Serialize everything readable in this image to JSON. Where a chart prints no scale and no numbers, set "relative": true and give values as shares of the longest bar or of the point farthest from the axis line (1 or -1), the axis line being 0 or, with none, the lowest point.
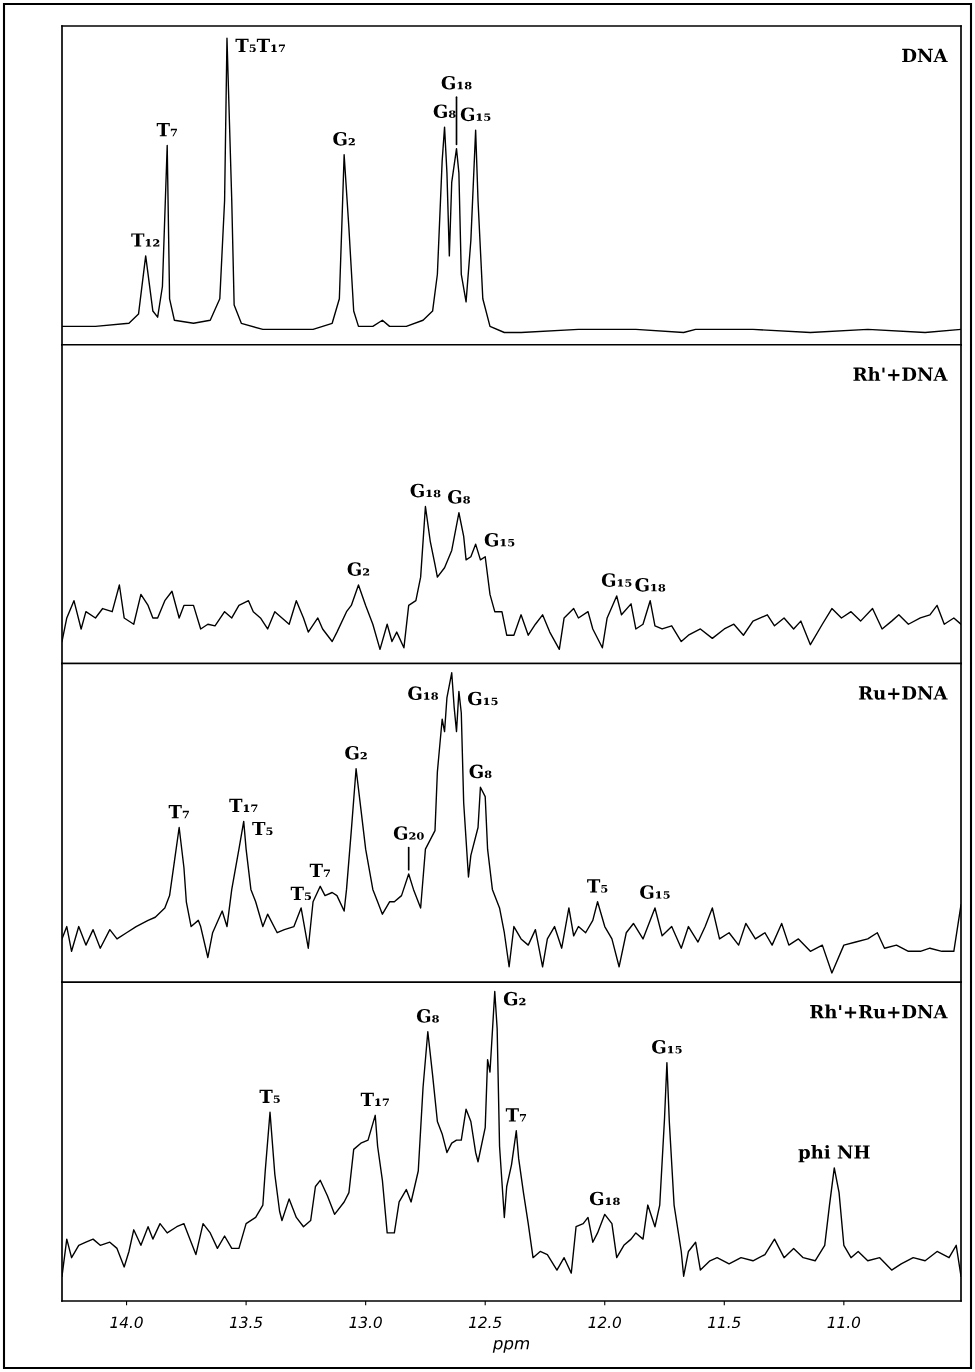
{
  "chart_data": [
    {
      "type": "line",
      "title": "DNA",
      "relative": true,
      "color": "#000000",
      "xlim": [
        14.27,
        10.51
      ],
      "tick_labels": false,
      "x": [
        14.27,
        14.13,
        13.99,
        13.95,
        13.92,
        13.89,
        13.87,
        13.85,
        13.83,
        13.82,
        13.8,
        13.72,
        13.65,
        13.61,
        13.59,
        13.58,
        13.56,
        13.55,
        13.52,
        13.43,
        13.31,
        13.22,
        13.14,
        13.11,
        13.1,
        13.09,
        13.07,
        13.05,
        13.03,
        12.97,
        12.93,
        12.9,
        12.83,
        12.76,
        12.72,
        12.7,
        12.68,
        12.67,
        12.66,
        12.65,
        12.64,
        12.62,
        12.61,
        12.6,
        12.58,
        12.56,
        12.54,
        12.53,
        12.51,
        12.48,
        12.42,
        12.35,
        12.11,
        11.87,
        11.67,
        11.62,
        11.38,
        11.14,
        10.9,
        10.66,
        10.51
      ],
      "values": [
        0.06,
        0.06,
        0.07,
        0.1,
        0.29,
        0.11,
        0.09,
        0.19,
        0.65,
        0.15,
        0.08,
        0.07,
        0.08,
        0.15,
        0.47,
        1.0,
        0.47,
        0.13,
        0.07,
        0.05,
        0.05,
        0.05,
        0.07,
        0.15,
        0.38,
        0.62,
        0.38,
        0.11,
        0.06,
        0.06,
        0.08,
        0.06,
        0.06,
        0.08,
        0.11,
        0.23,
        0.6,
        0.71,
        0.56,
        0.29,
        0.53,
        0.64,
        0.56,
        0.23,
        0.14,
        0.34,
        0.7,
        0.47,
        0.15,
        0.06,
        0.04,
        0.04,
        0.05,
        0.05,
        0.04,
        0.05,
        0.05,
        0.04,
        0.05,
        0.04,
        0.05
      ],
      "annotations": [
        {
          "text": "T₁₂",
          "x": 13.92,
          "y": 0.29
        },
        {
          "text": "T₇",
          "x": 13.83,
          "y": 0.65
        },
        {
          "text": "T₅T₁₇",
          "x": 13.58,
          "y": 1.0
        },
        {
          "text": "G₂",
          "x": 13.09,
          "y": 0.62
        },
        {
          "text": "G₁₅",
          "x": 12.54,
          "y": 0.7
        },
        {
          "text": "G₈",
          "x": 12.67,
          "y": 0.71
        },
        {
          "text": "G₁₈",
          "x": 12.62,
          "y": 0.64
        }
      ]
    },
    {
      "type": "line",
      "title": "Rh'+DNA",
      "relative": true,
      "color": "#000000",
      "xlim": [
        14.27,
        10.51
      ],
      "tick_labels": false,
      "x": [
        14.27,
        14.25,
        14.22,
        14.19,
        14.17,
        14.13,
        14.1,
        14.06,
        14.03,
        14.01,
        13.97,
        13.94,
        13.91,
        13.89,
        13.87,
        13.84,
        13.81,
        13.78,
        13.76,
        13.72,
        13.69,
        13.66,
        13.63,
        13.59,
        13.56,
        13.53,
        13.49,
        13.47,
        13.44,
        13.41,
        13.38,
        13.35,
        13.32,
        13.29,
        13.26,
        13.24,
        13.2,
        13.18,
        13.14,
        13.12,
        13.08,
        13.06,
        13.03,
        13.0,
        12.97,
        12.94,
        12.91,
        12.89,
        12.87,
        12.84,
        12.82,
        12.79,
        12.77,
        12.75,
        12.73,
        12.71,
        12.7,
        12.67,
        12.64,
        12.61,
        12.59,
        12.58,
        12.56,
        12.54,
        12.52,
        12.5,
        12.48,
        12.46,
        12.43,
        12.41,
        12.38,
        12.35,
        12.32,
        12.29,
        12.26,
        12.23,
        12.19,
        12.17,
        12.13,
        12.11,
        12.07,
        12.05,
        12.01,
        11.99,
        11.95,
        11.93,
        11.89,
        11.87,
        11.84,
        11.81,
        11.79,
        11.76,
        11.72,
        11.68,
        11.65,
        11.6,
        11.55,
        11.5,
        11.46,
        11.42,
        11.38,
        11.32,
        11.29,
        11.25,
        11.21,
        11.18,
        11.14,
        11.09,
        11.05,
        11.01,
        10.97,
        10.93,
        10.88,
        10.84,
        10.8,
        10.77,
        10.73,
        10.68,
        10.64,
        10.61,
        10.58,
        10.54,
        10.51
      ],
      "values": [
        0.14,
        0.29,
        0.4,
        0.22,
        0.33,
        0.29,
        0.35,
        0.33,
        0.5,
        0.29,
        0.25,
        0.44,
        0.37,
        0.29,
        0.29,
        0.4,
        0.46,
        0.29,
        0.37,
        0.37,
        0.22,
        0.25,
        0.24,
        0.33,
        0.29,
        0.37,
        0.4,
        0.33,
        0.29,
        0.22,
        0.33,
        0.29,
        0.25,
        0.4,
        0.29,
        0.2,
        0.29,
        0.22,
        0.14,
        0.2,
        0.33,
        0.37,
        0.5,
        0.37,
        0.25,
        0.09,
        0.25,
        0.14,
        0.2,
        0.1,
        0.37,
        0.4,
        0.55,
        1.0,
        0.78,
        0.63,
        0.55,
        0.61,
        0.72,
        0.96,
        0.81,
        0.66,
        0.68,
        0.76,
        0.66,
        0.68,
        0.44,
        0.33,
        0.33,
        0.18,
        0.18,
        0.31,
        0.18,
        0.25,
        0.31,
        0.2,
        0.09,
        0.29,
        0.35,
        0.29,
        0.33,
        0.22,
        0.1,
        0.29,
        0.43,
        0.31,
        0.38,
        0.22,
        0.25,
        0.4,
        0.24,
        0.22,
        0.24,
        0.14,
        0.18,
        0.22,
        0.16,
        0.22,
        0.25,
        0.18,
        0.27,
        0.31,
        0.24,
        0.29,
        0.22,
        0.27,
        0.12,
        0.25,
        0.35,
        0.29,
        0.33,
        0.27,
        0.35,
        0.22,
        0.27,
        0.31,
        0.25,
        0.29,
        0.31,
        0.37,
        0.25,
        0.29,
        0.25
      ],
      "annotations": [
        {
          "text": "G₂",
          "x": 13.03,
          "y": 0.5
        },
        {
          "text": "G₁₈",
          "x": 12.75,
          "y": 1.0
        },
        {
          "text": "G₁₅",
          "x": 12.54,
          "y": 0.76
        },
        {
          "text": "G₈",
          "x": 12.61,
          "y": 0.96
        },
        {
          "text": "G₁₈",
          "x": 11.81,
          "y": 0.4
        },
        {
          "text": "G₁₅",
          "x": 11.95,
          "y": 0.43
        }
      ]
    },
    {
      "type": "line",
      "title": "Ru+DNA",
      "relative": true,
      "color": "#000000",
      "xlim": [
        14.27,
        10.51
      ],
      "tick_labels": false,
      "x": [
        14.27,
        14.25,
        14.23,
        14.2,
        14.17,
        14.14,
        14.11,
        14.07,
        14.04,
        14.0,
        13.96,
        13.91,
        13.88,
        13.84,
        13.82,
        13.8,
        13.78,
        13.76,
        13.75,
        13.73,
        13.7,
        13.69,
        13.66,
        13.64,
        13.6,
        13.58,
        13.56,
        13.53,
        13.51,
        13.5,
        13.48,
        13.46,
        13.43,
        13.41,
        13.37,
        13.34,
        13.3,
        13.27,
        13.24,
        13.22,
        13.19,
        13.17,
        13.14,
        13.12,
        13.09,
        13.08,
        13.06,
        13.04,
        13.02,
        13.0,
        12.97,
        12.95,
        12.93,
        12.9,
        12.88,
        12.85,
        12.82,
        12.8,
        12.77,
        12.75,
        12.71,
        12.7,
        12.68,
        12.67,
        12.66,
        12.64,
        12.63,
        12.62,
        12.61,
        12.6,
        12.59,
        12.57,
        12.56,
        12.53,
        12.52,
        12.5,
        12.49,
        12.47,
        12.44,
        12.42,
        12.4,
        12.38,
        12.35,
        12.32,
        12.29,
        12.26,
        12.24,
        12.21,
        12.18,
        12.15,
        12.13,
        12.11,
        12.08,
        12.05,
        12.03,
        12.0,
        11.97,
        11.94,
        11.91,
        11.88,
        11.84,
        11.79,
        11.76,
        11.72,
        11.68,
        11.65,
        11.61,
        11.58,
        11.55,
        11.52,
        11.48,
        11.44,
        11.41,
        11.37,
        11.33,
        11.3,
        11.26,
        11.23,
        11.19,
        11.14,
        11.09,
        11.05,
        11.0,
        10.95,
        10.9,
        10.86,
        10.83,
        10.78,
        10.73,
        10.68,
        10.64,
        10.59,
        10.54,
        10.51
      ],
      "values": [
        0.14,
        0.18,
        0.1,
        0.18,
        0.12,
        0.17,
        0.11,
        0.17,
        0.14,
        0.16,
        0.18,
        0.2,
        0.21,
        0.24,
        0.28,
        0.39,
        0.5,
        0.37,
        0.26,
        0.18,
        0.2,
        0.18,
        0.08,
        0.16,
        0.23,
        0.18,
        0.3,
        0.43,
        0.52,
        0.43,
        0.3,
        0.26,
        0.18,
        0.22,
        0.16,
        0.17,
        0.18,
        0.24,
        0.11,
        0.26,
        0.31,
        0.28,
        0.29,
        0.28,
        0.23,
        0.3,
        0.49,
        0.69,
        0.56,
        0.43,
        0.3,
        0.26,
        0.22,
        0.26,
        0.26,
        0.28,
        0.35,
        0.3,
        0.24,
        0.43,
        0.49,
        0.68,
        0.85,
        0.81,
        0.92,
        1.0,
        0.89,
        0.81,
        0.94,
        0.87,
        0.58,
        0.34,
        0.41,
        0.5,
        0.63,
        0.6,
        0.43,
        0.3,
        0.24,
        0.16,
        0.05,
        0.18,
        0.14,
        0.12,
        0.17,
        0.05,
        0.14,
        0.18,
        0.11,
        0.24,
        0.15,
        0.18,
        0.16,
        0.2,
        0.26,
        0.18,
        0.14,
        0.05,
        0.16,
        0.19,
        0.14,
        0.24,
        0.15,
        0.18,
        0.11,
        0.18,
        0.13,
        0.18,
        0.24,
        0.14,
        0.16,
        0.12,
        0.19,
        0.14,
        0.16,
        0.12,
        0.19,
        0.12,
        0.14,
        0.1,
        0.12,
        0.03,
        0.12,
        0.13,
        0.14,
        0.16,
        0.11,
        0.12,
        0.1,
        0.1,
        0.11,
        0.1,
        0.1,
        0.25
      ],
      "annotations": [
        {
          "text": "T₇",
          "x": 13.78,
          "y": 0.5
        },
        {
          "text": "T₁₇",
          "x": 13.51,
          "y": 0.52
        },
        {
          "text": "T₅",
          "x": 13.51,
          "y": 0.52
        },
        {
          "text": "T₇",
          "x": 13.19,
          "y": 0.31
        },
        {
          "text": "T₅",
          "x": 13.19,
          "y": 0.31
        },
        {
          "text": "G₂",
          "x": 13.04,
          "y": 0.69
        },
        {
          "text": "G₂₀",
          "x": 12.82,
          "y": 0.35
        },
        {
          "text": "G₁₈",
          "x": 12.66,
          "y": 0.92
        },
        {
          "text": "G₈",
          "x": 12.52,
          "y": 0.63
        },
        {
          "text": "G₁₅",
          "x": 12.61,
          "y": 0.94
        },
        {
          "text": "T₅",
          "x": 12.03,
          "y": 0.26
        },
        {
          "text": "G₁₅",
          "x": 11.79,
          "y": 0.24
        }
      ]
    },
    {
      "type": "line",
      "title": "Rh'+Ru+DNA",
      "relative": true,
      "color": "#000000",
      "xlabel": "ppm",
      "xlim": [
        14.27,
        10.51
      ],
      "xticks": [
        {
          "value": 14,
          "label": "14.0"
        },
        13.5,
        {
          "value": 13,
          "label": "13.0"
        },
        12.5,
        {
          "value": 12,
          "label": "12.0"
        },
        11.5,
        {
          "value": 11,
          "label": "11.0"
        }
      ],
      "tick_labels": "x",
      "x": [
        14.27,
        14.25,
        14.23,
        14.2,
        14.17,
        14.14,
        14.11,
        14.07,
        14.04,
        14.01,
        13.99,
        13.97,
        13.94,
        13.91,
        13.89,
        13.86,
        13.83,
        13.79,
        13.76,
        13.73,
        13.71,
        13.68,
        13.65,
        13.62,
        13.59,
        13.56,
        13.53,
        13.5,
        13.46,
        13.43,
        13.42,
        13.4,
        13.38,
        13.36,
        13.35,
        13.32,
        13.29,
        13.26,
        13.23,
        13.21,
        13.19,
        13.16,
        13.13,
        13.09,
        13.07,
        13.05,
        13.02,
        12.99,
        12.96,
        12.95,
        12.93,
        12.91,
        12.88,
        12.86,
        12.83,
        12.81,
        12.78,
        12.76,
        12.74,
        12.72,
        12.7,
        12.68,
        12.66,
        12.64,
        12.62,
        12.6,
        12.58,
        12.56,
        12.54,
        12.53,
        12.5,
        12.49,
        12.48,
        12.46,
        12.45,
        12.44,
        12.42,
        12.41,
        12.39,
        12.37,
        12.36,
        12.34,
        12.32,
        12.3,
        12.27,
        12.24,
        12.2,
        12.17,
        12.14,
        12.12,
        12.09,
        12.07,
        12.05,
        12.03,
        12.0,
        11.97,
        11.95,
        11.92,
        11.89,
        11.87,
        11.84,
        11.82,
        11.79,
        11.77,
        11.75,
        11.74,
        11.73,
        11.71,
        11.68,
        11.67,
        11.65,
        11.62,
        11.6,
        11.56,
        11.53,
        11.48,
        11.43,
        11.38,
        11.33,
        11.29,
        11.25,
        11.21,
        11.17,
        11.12,
        11.08,
        11.06,
        11.04,
        11.02,
        11.0,
        10.97,
        10.94,
        10.9,
        10.85,
        10.8,
        10.76,
        10.71,
        10.66,
        10.61,
        10.56,
        10.53,
        10.51
      ],
      "values": [
        0.08,
        0.2,
        0.14,
        0.18,
        0.19,
        0.2,
        0.18,
        0.19,
        0.17,
        0.11,
        0.16,
        0.23,
        0.18,
        0.24,
        0.2,
        0.25,
        0.22,
        0.24,
        0.25,
        0.19,
        0.15,
        0.25,
        0.22,
        0.17,
        0.21,
        0.17,
        0.17,
        0.25,
        0.27,
        0.31,
        0.42,
        0.61,
        0.41,
        0.29,
        0.26,
        0.33,
        0.27,
        0.24,
        0.26,
        0.37,
        0.39,
        0.34,
        0.28,
        0.32,
        0.35,
        0.49,
        0.51,
        0.52,
        0.6,
        0.5,
        0.39,
        0.22,
        0.22,
        0.32,
        0.36,
        0.32,
        0.42,
        0.69,
        0.87,
        0.73,
        0.58,
        0.54,
        0.48,
        0.51,
        0.52,
        0.52,
        0.62,
        0.58,
        0.48,
        0.45,
        0.56,
        0.78,
        0.74,
        1.0,
        0.88,
        0.5,
        0.27,
        0.37,
        0.44,
        0.55,
        0.46,
        0.35,
        0.25,
        0.14,
        0.16,
        0.15,
        0.1,
        0.14,
        0.09,
        0.24,
        0.25,
        0.27,
        0.19,
        0.22,
        0.28,
        0.25,
        0.14,
        0.18,
        0.2,
        0.22,
        0.2,
        0.31,
        0.24,
        0.31,
        0.59,
        0.77,
        0.58,
        0.31,
        0.16,
        0.08,
        0.16,
        0.19,
        0.1,
        0.13,
        0.14,
        0.12,
        0.14,
        0.13,
        0.15,
        0.2,
        0.14,
        0.17,
        0.14,
        0.13,
        0.18,
        0.31,
        0.43,
        0.35,
        0.18,
        0.14,
        0.16,
        0.13,
        0.14,
        0.1,
        0.12,
        0.14,
        0.13,
        0.16,
        0.14,
        0.18,
        0.08
      ],
      "annotations": [
        {
          "text": "T₅",
          "x": 13.4,
          "y": 0.61
        },
        {
          "text": "T₁₇",
          "x": 12.96,
          "y": 0.6
        },
        {
          "text": "G₈",
          "x": 12.74,
          "y": 0.87
        },
        {
          "text": "G₂",
          "x": 12.46,
          "y": 1.0
        },
        {
          "text": "T₇",
          "x": 12.37,
          "y": 0.55
        },
        {
          "text": "G₁₈",
          "x": 12.0,
          "y": 0.28
        },
        {
          "text": "G₁₅",
          "x": 11.74,
          "y": 0.77
        },
        {
          "text": "phi NH",
          "x": 11.04,
          "y": 0.43
        }
      ]
    }
  ]
}
